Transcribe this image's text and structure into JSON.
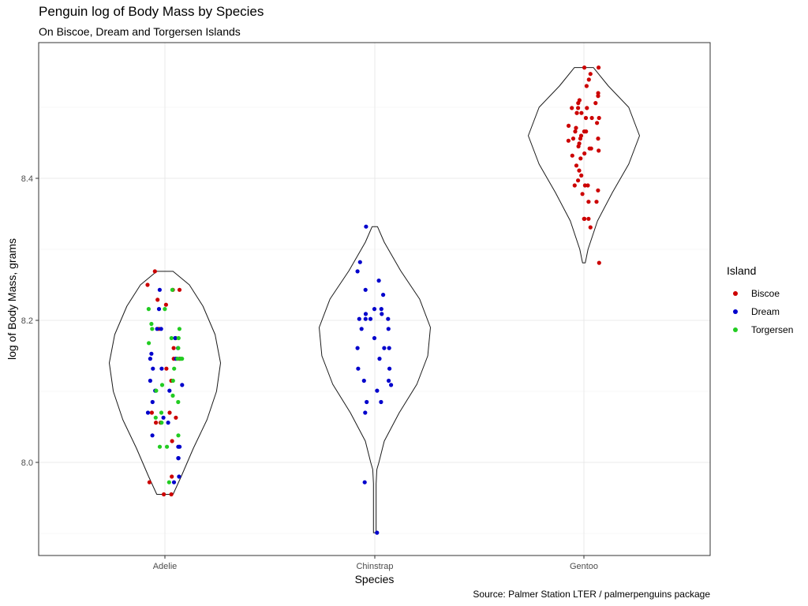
{
  "title": "Penguin log of Body Mass by Species",
  "subtitle": "On Biscoe, Dream and Torgersen Islands",
  "caption": "Source: Palmer Station LTER / palmerpenguins package",
  "legend": {
    "title": "Island",
    "items": [
      {
        "label": "Biscoe",
        "color": "#cc0000"
      },
      {
        "label": "Dream",
        "color": "#0000cc"
      },
      {
        "label": "Torgersen",
        "color": "#22cc22"
      }
    ]
  },
  "chart_data": {
    "type": "violin",
    "xlabel": "Species",
    "ylabel": "log of Body Mass, grams",
    "categories": [
      "Adelie",
      "Chinstrap",
      "Gentoo"
    ],
    "ylim": [
      7.87,
      8.59
    ],
    "yticks": [
      8.0,
      8.2,
      8.4
    ],
    "ytick_labels": [
      "8.0",
      "8.2",
      "8.4"
    ],
    "grid": true,
    "legend_position": "right",
    "violins": [
      {
        "category": "Adelie",
        "ymin": 7.955,
        "ymax": 8.269,
        "profile": [
          [
            7.955,
            0.12
          ],
          [
            7.98,
            0.24
          ],
          [
            8.02,
            0.42
          ],
          [
            8.06,
            0.62
          ],
          [
            8.1,
            0.76
          ],
          [
            8.14,
            0.82
          ],
          [
            8.18,
            0.74
          ],
          [
            8.22,
            0.56
          ],
          [
            8.25,
            0.36
          ],
          [
            8.269,
            0.12
          ]
        ]
      },
      {
        "category": "Chinstrap",
        "ymin": 7.901,
        "ymax": 8.332,
        "profile": [
          [
            7.901,
            0.02
          ],
          [
            7.97,
            0.02
          ],
          [
            7.99,
            0.03
          ],
          [
            8.0,
            0.06
          ],
          [
            8.03,
            0.14
          ],
          [
            8.07,
            0.36
          ],
          [
            8.11,
            0.62
          ],
          [
            8.15,
            0.78
          ],
          [
            8.19,
            0.82
          ],
          [
            8.23,
            0.66
          ],
          [
            8.27,
            0.38
          ],
          [
            8.31,
            0.14
          ],
          [
            8.332,
            0.04
          ]
        ]
      },
      {
        "category": "Gentoo",
        "ymin": 8.281,
        "ymax": 8.556,
        "profile": [
          [
            8.281,
            0.02
          ],
          [
            8.3,
            0.06
          ],
          [
            8.34,
            0.2
          ],
          [
            8.38,
            0.42
          ],
          [
            8.42,
            0.66
          ],
          [
            8.46,
            0.82
          ],
          [
            8.5,
            0.66
          ],
          [
            8.53,
            0.36
          ],
          [
            8.556,
            0.14
          ]
        ]
      }
    ],
    "series": [
      {
        "name": "Biscoe",
        "color": "#cc0000",
        "points": [
          [
            "Adelie",
            8.25
          ],
          [
            "Adelie",
            8.243
          ],
          [
            "Adelie",
            8.229
          ],
          [
            "Adelie",
            8.269
          ],
          [
            "Adelie",
            8.243
          ],
          [
            "Adelie",
            8.222
          ],
          [
            "Adelie",
            8.188
          ],
          [
            "Adelie",
            8.161
          ],
          [
            "Adelie",
            8.146
          ],
          [
            "Adelie",
            8.132
          ],
          [
            "Adelie",
            8.115
          ],
          [
            "Adelie",
            8.07
          ],
          [
            "Adelie",
            8.063
          ],
          [
            "Adelie",
            8.056
          ],
          [
            "Adelie",
            8.056
          ],
          [
            "Adelie",
            8.03
          ],
          [
            "Adelie",
            7.98
          ],
          [
            "Adelie",
            7.972
          ],
          [
            "Adelie",
            7.955
          ],
          [
            "Adelie",
            7.955
          ],
          [
            "Adelie",
            8.146
          ],
          [
            "Adelie",
            8.175
          ],
          [
            "Adelie",
            8.07
          ],
          [
            "Gentoo",
            8.556
          ],
          [
            "Gentoo",
            8.556
          ],
          [
            "Gentoo",
            8.547
          ],
          [
            "Gentoo",
            8.539
          ],
          [
            "Gentoo",
            8.53
          ],
          [
            "Gentoo",
            8.52
          ],
          [
            "Gentoo",
            8.516
          ],
          [
            "Gentoo",
            8.51
          ],
          [
            "Gentoo",
            8.506
          ],
          [
            "Gentoo",
            8.506
          ],
          [
            "Gentoo",
            8.499
          ],
          [
            "Gentoo",
            8.499
          ],
          [
            "Gentoo",
            8.492
          ],
          [
            "Gentoo",
            8.492
          ],
          [
            "Gentoo",
            8.492
          ],
          [
            "Gentoo",
            8.485
          ],
          [
            "Gentoo",
            8.485
          ],
          [
            "Gentoo",
            8.485
          ],
          [
            "Gentoo",
            8.478
          ],
          [
            "Gentoo",
            8.474
          ],
          [
            "Gentoo",
            8.471
          ],
          [
            "Gentoo",
            8.466
          ],
          [
            "Gentoo",
            8.466
          ],
          [
            "Gentoo",
            8.46
          ],
          [
            "Gentoo",
            8.456
          ],
          [
            "Gentoo",
            8.456
          ],
          [
            "Gentoo",
            8.453
          ],
          [
            "Gentoo",
            8.449
          ],
          [
            "Gentoo",
            8.445
          ],
          [
            "Gentoo",
            8.442
          ],
          [
            "Gentoo",
            8.439
          ],
          [
            "Gentoo",
            8.435
          ],
          [
            "Gentoo",
            8.432
          ],
          [
            "Gentoo",
            8.428
          ],
          [
            "Gentoo",
            8.418
          ],
          [
            "Gentoo",
            8.411
          ],
          [
            "Gentoo",
            8.404
          ],
          [
            "Gentoo",
            8.397
          ],
          [
            "Gentoo",
            8.39
          ],
          [
            "Gentoo",
            8.39
          ],
          [
            "Gentoo",
            8.39
          ],
          [
            "Gentoo",
            8.383
          ],
          [
            "Gentoo",
            8.378
          ],
          [
            "Gentoo",
            8.367
          ],
          [
            "Gentoo",
            8.367
          ],
          [
            "Gentoo",
            8.343
          ],
          [
            "Gentoo",
            8.343
          ],
          [
            "Gentoo",
            8.343
          ],
          [
            "Gentoo",
            8.331
          ],
          [
            "Gentoo",
            8.281
          ],
          [
            "Gentoo",
            8.456
          ],
          [
            "Gentoo",
            8.442
          ],
          [
            "Gentoo",
            8.466
          ],
          [
            "Gentoo",
            8.499
          ]
        ]
      },
      {
        "name": "Dream",
        "color": "#0000cc",
        "points": [
          [
            "Adelie",
            8.243
          ],
          [
            "Adelie",
            8.216
          ],
          [
            "Adelie",
            8.188
          ],
          [
            "Adelie",
            8.175
          ],
          [
            "Adelie",
            8.161
          ],
          [
            "Adelie",
            8.153
          ],
          [
            "Adelie",
            8.146
          ],
          [
            "Adelie",
            8.146
          ],
          [
            "Adelie",
            8.132
          ],
          [
            "Adelie",
            8.132
          ],
          [
            "Adelie",
            8.115
          ],
          [
            "Adelie",
            8.109
          ],
          [
            "Adelie",
            8.101
          ],
          [
            "Adelie",
            8.101
          ],
          [
            "Adelie",
            8.085
          ],
          [
            "Adelie",
            8.063
          ],
          [
            "Adelie",
            8.056
          ],
          [
            "Adelie",
            8.038
          ],
          [
            "Adelie",
            8.022
          ],
          [
            "Adelie",
            8.022
          ],
          [
            "Adelie",
            8.006
          ],
          [
            "Adelie",
            8.006
          ],
          [
            "Adelie",
            7.98
          ],
          [
            "Adelie",
            7.972
          ],
          [
            "Adelie",
            8.188
          ],
          [
            "Adelie",
            8.07
          ],
          [
            "Chinstrap",
            8.332
          ],
          [
            "Chinstrap",
            8.282
          ],
          [
            "Chinstrap",
            8.269
          ],
          [
            "Chinstrap",
            8.256
          ],
          [
            "Chinstrap",
            8.243
          ],
          [
            "Chinstrap",
            8.236
          ],
          [
            "Chinstrap",
            8.216
          ],
          [
            "Chinstrap",
            8.216
          ],
          [
            "Chinstrap",
            8.209
          ],
          [
            "Chinstrap",
            8.202
          ],
          [
            "Chinstrap",
            8.202
          ],
          [
            "Chinstrap",
            8.202
          ],
          [
            "Chinstrap",
            8.188
          ],
          [
            "Chinstrap",
            8.188
          ],
          [
            "Chinstrap",
            8.175
          ],
          [
            "Chinstrap",
            8.161
          ],
          [
            "Chinstrap",
            8.161
          ],
          [
            "Chinstrap",
            8.146
          ],
          [
            "Chinstrap",
            8.132
          ],
          [
            "Chinstrap",
            8.132
          ],
          [
            "Chinstrap",
            8.115
          ],
          [
            "Chinstrap",
            8.115
          ],
          [
            "Chinstrap",
            8.109
          ],
          [
            "Chinstrap",
            8.101
          ],
          [
            "Chinstrap",
            8.085
          ],
          [
            "Chinstrap",
            8.085
          ],
          [
            "Chinstrap",
            8.07
          ],
          [
            "Chinstrap",
            7.972
          ],
          [
            "Chinstrap",
            7.901
          ],
          [
            "Chinstrap",
            8.202
          ],
          [
            "Chinstrap",
            8.161
          ],
          [
            "Chinstrap",
            8.209
          ]
        ]
      },
      {
        "name": "Torgersen",
        "color": "#22cc22",
        "points": [
          [
            "Adelie",
            8.243
          ],
          [
            "Adelie",
            8.216
          ],
          [
            "Adelie",
            8.216
          ],
          [
            "Adelie",
            8.195
          ],
          [
            "Adelie",
            8.188
          ],
          [
            "Adelie",
            8.188
          ],
          [
            "Adelie",
            8.175
          ],
          [
            "Adelie",
            8.175
          ],
          [
            "Adelie",
            8.168
          ],
          [
            "Adelie",
            8.161
          ],
          [
            "Adelie",
            8.146
          ],
          [
            "Adelie",
            8.146
          ],
          [
            "Adelie",
            8.146
          ],
          [
            "Adelie",
            8.132
          ],
          [
            "Adelie",
            8.109
          ],
          [
            "Adelie",
            8.101
          ],
          [
            "Adelie",
            8.094
          ],
          [
            "Adelie",
            8.085
          ],
          [
            "Adelie",
            8.07
          ],
          [
            "Adelie",
            8.063
          ],
          [
            "Adelie",
            8.056
          ],
          [
            "Adelie",
            8.038
          ],
          [
            "Adelie",
            8.022
          ],
          [
            "Adelie",
            8.022
          ],
          [
            "Adelie",
            7.972
          ],
          [
            "Adelie",
            8.115
          ]
        ]
      }
    ]
  }
}
